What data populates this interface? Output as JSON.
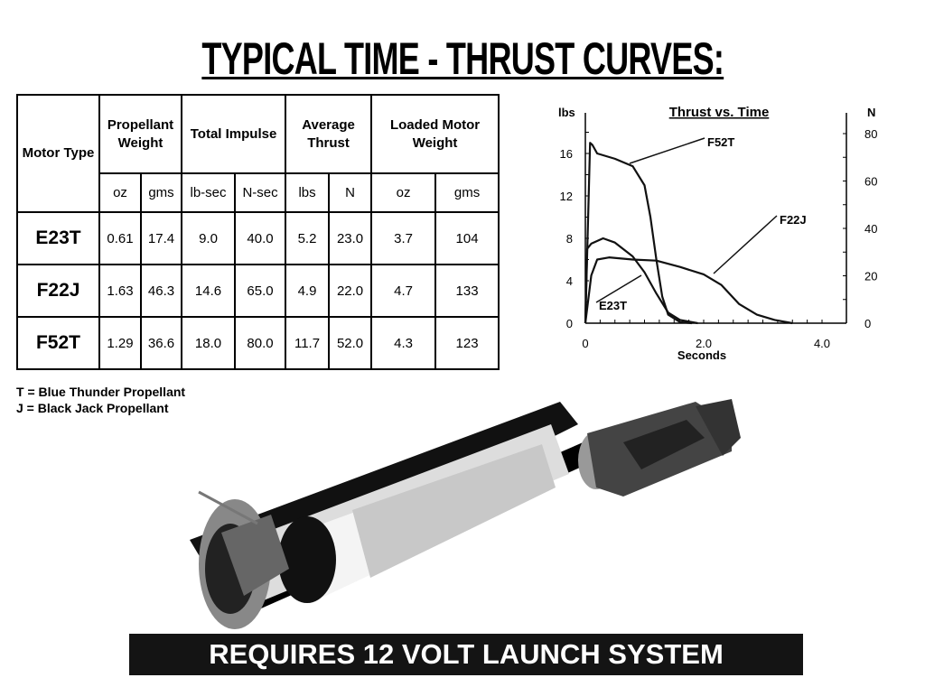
{
  "title": "TYPICAL TIME - THRUST CURVES:",
  "table": {
    "headers": [
      "Motor Type",
      "Propellant Weight",
      "Total Impulse",
      "Average Thrust",
      "Loaded Motor Weight"
    ],
    "subheaders": [
      "oz",
      "gms",
      "lb-sec",
      "N-sec",
      "lbs",
      "N",
      "oz",
      "gms"
    ],
    "rows": [
      [
        "E23T",
        "0.61",
        "17.4",
        "9.0",
        "40.0",
        "5.2",
        "23.0",
        "3.7",
        "104"
      ],
      [
        "F22J",
        "1.63",
        "46.3",
        "14.6",
        "65.0",
        "4.9",
        "22.0",
        "4.7",
        "133"
      ],
      [
        "F52T",
        "1.29",
        "36.6",
        "18.0",
        "80.0",
        "11.7",
        "52.0",
        "4.3",
        "123"
      ]
    ]
  },
  "legend": [
    "T = Blue Thunder Propellant",
    "J = Black Jack Propellant"
  ],
  "chart_data": {
    "type": "line",
    "title": "Thrust vs. Time",
    "xlabel": "Seconds",
    "ylabel": "lbs",
    "y2label": "N",
    "xlim": [
      0,
      4.0
    ],
    "ylim": [
      0,
      18
    ],
    "y2lim": [
      0,
      80
    ],
    "xticks": [
      "0",
      "2.0",
      "4.0"
    ],
    "yticks": [
      "0",
      "4",
      "8",
      "12",
      "16"
    ],
    "y2ticks": [
      "0",
      "20",
      "40",
      "60",
      "80"
    ],
    "grid": false,
    "series": [
      {
        "name": "F52T",
        "x": [
          0,
          0.08,
          0.12,
          0.2,
          0.5,
          0.8,
          1.0,
          1.1,
          1.2,
          1.3,
          1.4,
          1.6,
          1.8
        ],
        "y": [
          0,
          17,
          16.8,
          16,
          15.5,
          14.8,
          13,
          10,
          6,
          2.5,
          0.8,
          0.1,
          0
        ]
      },
      {
        "name": "E23T",
        "x": [
          0,
          0.03,
          0.1,
          0.3,
          0.5,
          0.8,
          1.0,
          1.2,
          1.4,
          1.6,
          1.9
        ],
        "y": [
          0,
          7,
          7.5,
          8,
          7.6,
          6.3,
          4.8,
          2.8,
          1,
          0.3,
          0
        ]
      },
      {
        "name": "F22J",
        "x": [
          0,
          0.1,
          0.2,
          0.4,
          0.8,
          1.2,
          1.6,
          2.0,
          2.3,
          2.6,
          2.9,
          3.2,
          3.5
        ],
        "y": [
          0,
          4.5,
          6,
          6.2,
          6,
          5.9,
          5.3,
          4.6,
          3.6,
          1.8,
          0.8,
          0.3,
          0
        ]
      }
    ]
  },
  "banner": "REQUIRES 12 VOLT LAUNCH SYSTEM"
}
